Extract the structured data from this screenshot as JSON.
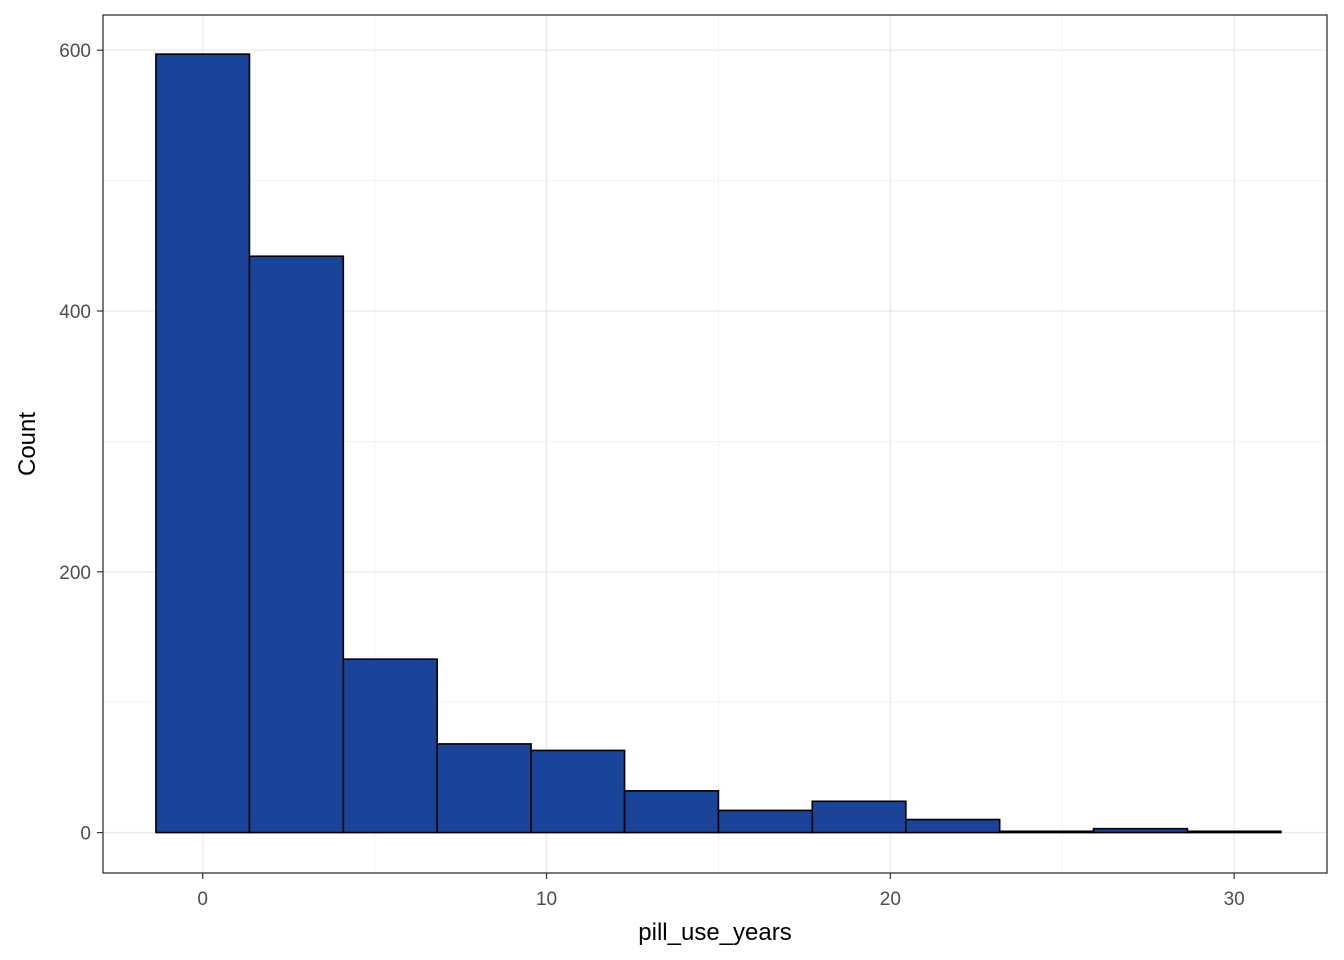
{
  "chart_data": {
    "type": "bar",
    "subtype": "histogram",
    "xlabel": "pill_use_years",
    "ylabel": "Count",
    "xlim": [
      -2.9,
      32.7
    ],
    "ylim": [
      -31,
      627
    ],
    "x_ticks": [
      0,
      10,
      20,
      30
    ],
    "x_tick_labels": [
      "0",
      "10",
      "20",
      "30"
    ],
    "y_ticks": [
      0,
      200,
      400,
      600
    ],
    "y_tick_labels": [
      "0",
      "200",
      "400",
      "600"
    ],
    "grid": true,
    "bins": [
      {
        "x_start": -1.36,
        "x_end": 1.36,
        "count": 597
      },
      {
        "x_start": 1.36,
        "x_end": 4.09,
        "count": 442
      },
      {
        "x_start": 4.09,
        "x_end": 6.82,
        "count": 133
      },
      {
        "x_start": 6.82,
        "x_end": 9.55,
        "count": 68
      },
      {
        "x_start": 9.55,
        "x_end": 12.27,
        "count": 63
      },
      {
        "x_start": 12.27,
        "x_end": 15.0,
        "count": 32
      },
      {
        "x_start": 15.0,
        "x_end": 17.73,
        "count": 17
      },
      {
        "x_start": 17.73,
        "x_end": 20.45,
        "count": 24
      },
      {
        "x_start": 20.45,
        "x_end": 23.18,
        "count": 10
      },
      {
        "x_start": 23.18,
        "x_end": 25.91,
        "count": 1
      },
      {
        "x_start": 25.91,
        "x_end": 28.64,
        "count": 3
      },
      {
        "x_start": 28.64,
        "x_end": 31.36,
        "count": 1
      }
    ],
    "colors": {
      "bar_fill": "#1a4499",
      "bar_outline": "#000000",
      "panel_border": "#333333",
      "grid": "#ebebeb"
    }
  }
}
